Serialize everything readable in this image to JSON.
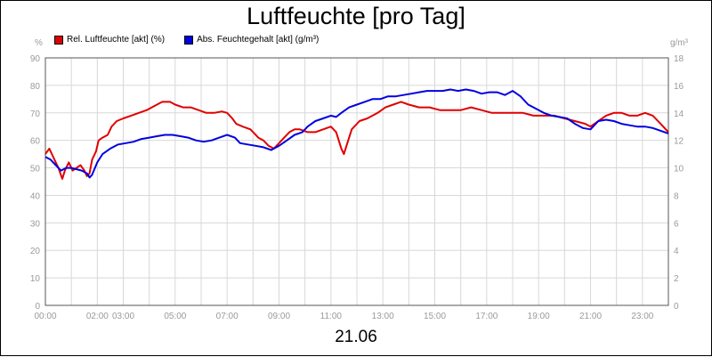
{
  "chart_data": {
    "type": "line",
    "title": "Luftfeuchte [pro Tag]",
    "date_label": "21.06",
    "left_unit": "%",
    "right_unit": "g/m³",
    "x_ticks": [
      "00:00",
      "02:00",
      "03:00",
      "05:00",
      "07:00",
      "09:00",
      "11:00",
      "13:00",
      "15:00",
      "17:00",
      "19:00",
      "21:00",
      "23:00"
    ],
    "x_tick_hours": [
      0,
      2,
      3,
      5,
      7,
      9,
      11,
      13,
      15,
      17,
      19,
      21,
      23
    ],
    "x_range_hours": [
      0,
      24
    ],
    "y_left_ticks": [
      0,
      10,
      20,
      30,
      40,
      50,
      60,
      70,
      80,
      90
    ],
    "y_left_range": [
      0,
      90
    ],
    "y_right_ticks": [
      0,
      2,
      4,
      6,
      8,
      10,
      12,
      14,
      16,
      18
    ],
    "y_right_range": [
      0,
      18
    ],
    "grid": true,
    "legend_position": "top-left",
    "series": [
      {
        "name": "Rel. Luftfeuchte [akt] (%)",
        "color": "#e00000",
        "axis": "left",
        "points": [
          [
            0.0,
            55
          ],
          [
            0.15,
            57
          ],
          [
            0.35,
            53
          ],
          [
            0.5,
            50
          ],
          [
            0.65,
            46
          ],
          [
            0.75,
            49
          ],
          [
            0.9,
            52
          ],
          [
            1.05,
            49
          ],
          [
            1.2,
            50
          ],
          [
            1.35,
            51
          ],
          [
            1.5,
            49
          ],
          [
            1.6,
            47
          ],
          [
            1.7,
            48
          ],
          [
            1.8,
            53
          ],
          [
            1.95,
            56
          ],
          [
            2.05,
            60
          ],
          [
            2.2,
            61
          ],
          [
            2.4,
            62
          ],
          [
            2.55,
            65
          ],
          [
            2.75,
            67
          ],
          [
            3.0,
            68
          ],
          [
            3.3,
            69
          ],
          [
            3.6,
            70
          ],
          [
            3.9,
            71
          ],
          [
            4.1,
            72
          ],
          [
            4.3,
            73
          ],
          [
            4.5,
            74
          ],
          [
            4.8,
            74
          ],
          [
            5.0,
            73
          ],
          [
            5.3,
            72
          ],
          [
            5.6,
            72
          ],
          [
            5.9,
            71
          ],
          [
            6.2,
            70
          ],
          [
            6.5,
            70
          ],
          [
            6.8,
            70.5
          ],
          [
            7.0,
            70
          ],
          [
            7.2,
            68
          ],
          [
            7.35,
            66
          ],
          [
            7.6,
            65
          ],
          [
            7.9,
            64
          ],
          [
            8.2,
            61
          ],
          [
            8.4,
            60
          ],
          [
            8.6,
            58
          ],
          [
            8.8,
            57
          ],
          [
            9.0,
            59
          ],
          [
            9.2,
            61
          ],
          [
            9.4,
            63
          ],
          [
            9.6,
            64
          ],
          [
            9.8,
            64
          ],
          [
            10.1,
            63
          ],
          [
            10.4,
            63
          ],
          [
            10.7,
            64
          ],
          [
            11.0,
            65
          ],
          [
            11.2,
            63
          ],
          [
            11.4,
            57
          ],
          [
            11.5,
            55
          ],
          [
            11.6,
            58
          ],
          [
            11.8,
            64
          ],
          [
            12.1,
            67
          ],
          [
            12.4,
            68
          ],
          [
            12.8,
            70
          ],
          [
            13.1,
            72
          ],
          [
            13.4,
            73
          ],
          [
            13.7,
            74
          ],
          [
            14.0,
            73
          ],
          [
            14.4,
            72
          ],
          [
            14.8,
            72
          ],
          [
            15.2,
            71
          ],
          [
            15.6,
            71
          ],
          [
            16.0,
            71
          ],
          [
            16.4,
            72
          ],
          [
            16.8,
            71
          ],
          [
            17.2,
            70
          ],
          [
            17.6,
            70
          ],
          [
            18.0,
            70
          ],
          [
            18.4,
            70
          ],
          [
            18.8,
            69
          ],
          [
            19.2,
            69
          ],
          [
            19.6,
            69
          ],
          [
            20.0,
            68
          ],
          [
            20.4,
            67
          ],
          [
            20.8,
            66
          ],
          [
            21.0,
            65
          ],
          [
            21.3,
            67
          ],
          [
            21.6,
            69
          ],
          [
            21.9,
            70
          ],
          [
            22.2,
            70
          ],
          [
            22.5,
            69
          ],
          [
            22.8,
            69
          ],
          [
            23.1,
            70
          ],
          [
            23.4,
            69
          ],
          [
            23.7,
            66
          ],
          [
            24.0,
            63
          ]
        ]
      },
      {
        "name": "Abs. Feuchtegehalt [akt] (g/m³)",
        "color": "#0000e0",
        "axis": "right",
        "points": [
          [
            0.0,
            10.8
          ],
          [
            0.2,
            10.6
          ],
          [
            0.4,
            10.2
          ],
          [
            0.6,
            9.8
          ],
          [
            0.8,
            10.0
          ],
          [
            1.0,
            10.0
          ],
          [
            1.2,
            9.9
          ],
          [
            1.4,
            9.8
          ],
          [
            1.6,
            9.6
          ],
          [
            1.7,
            9.3
          ],
          [
            1.8,
            9.5
          ],
          [
            2.0,
            10.4
          ],
          [
            2.2,
            11.0
          ],
          [
            2.5,
            11.4
          ],
          [
            2.8,
            11.7
          ],
          [
            3.1,
            11.8
          ],
          [
            3.4,
            11.9
          ],
          [
            3.7,
            12.1
          ],
          [
            4.0,
            12.2
          ],
          [
            4.3,
            12.3
          ],
          [
            4.6,
            12.4
          ],
          [
            4.9,
            12.4
          ],
          [
            5.2,
            12.3
          ],
          [
            5.5,
            12.2
          ],
          [
            5.8,
            12.0
          ],
          [
            6.1,
            11.9
          ],
          [
            6.4,
            12.0
          ],
          [
            6.7,
            12.2
          ],
          [
            7.0,
            12.4
          ],
          [
            7.3,
            12.2
          ],
          [
            7.5,
            11.8
          ],
          [
            7.8,
            11.7
          ],
          [
            8.1,
            11.6
          ],
          [
            8.4,
            11.5
          ],
          [
            8.7,
            11.3
          ],
          [
            9.0,
            11.6
          ],
          [
            9.3,
            12.0
          ],
          [
            9.6,
            12.4
          ],
          [
            9.9,
            12.6
          ],
          [
            10.1,
            13.0
          ],
          [
            10.4,
            13.4
          ],
          [
            10.7,
            13.6
          ],
          [
            11.0,
            13.8
          ],
          [
            11.2,
            13.7
          ],
          [
            11.4,
            14.0
          ],
          [
            11.7,
            14.4
          ],
          [
            12.0,
            14.6
          ],
          [
            12.3,
            14.8
          ],
          [
            12.6,
            15.0
          ],
          [
            12.9,
            15.0
          ],
          [
            13.2,
            15.2
          ],
          [
            13.5,
            15.2
          ],
          [
            13.8,
            15.3
          ],
          [
            14.1,
            15.4
          ],
          [
            14.4,
            15.5
          ],
          [
            14.7,
            15.6
          ],
          [
            15.0,
            15.6
          ],
          [
            15.3,
            15.6
          ],
          [
            15.6,
            15.7
          ],
          [
            15.9,
            15.6
          ],
          [
            16.2,
            15.7
          ],
          [
            16.5,
            15.6
          ],
          [
            16.8,
            15.4
          ],
          [
            17.1,
            15.5
          ],
          [
            17.4,
            15.5
          ],
          [
            17.7,
            15.3
          ],
          [
            18.0,
            15.6
          ],
          [
            18.3,
            15.2
          ],
          [
            18.6,
            14.6
          ],
          [
            18.9,
            14.3
          ],
          [
            19.2,
            14.0
          ],
          [
            19.5,
            13.8
          ],
          [
            19.8,
            13.7
          ],
          [
            20.1,
            13.6
          ],
          [
            20.4,
            13.2
          ],
          [
            20.7,
            12.9
          ],
          [
            21.0,
            12.8
          ],
          [
            21.3,
            13.4
          ],
          [
            21.6,
            13.5
          ],
          [
            21.9,
            13.4
          ],
          [
            22.2,
            13.2
          ],
          [
            22.5,
            13.1
          ],
          [
            22.8,
            13.0
          ],
          [
            23.1,
            13.0
          ],
          [
            23.4,
            12.9
          ],
          [
            23.7,
            12.7
          ],
          [
            24.0,
            12.5
          ]
        ]
      }
    ]
  }
}
